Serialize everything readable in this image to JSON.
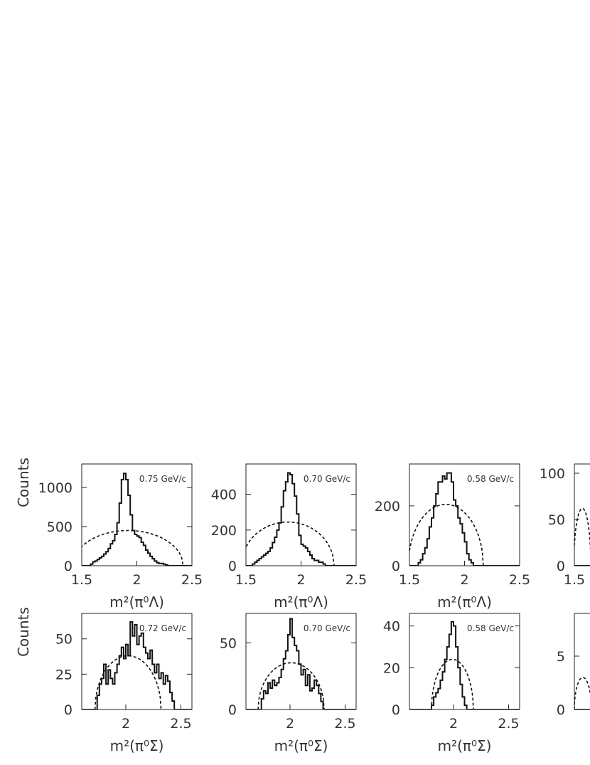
{
  "chart_data": [
    {
      "type": "histogram",
      "ylabel": "Counts",
      "xlabel": "m²(π⁰Λ)",
      "annotation": "0.75 GeV/c",
      "xlim": [
        1.5,
        2.5
      ],
      "ylim": [
        0,
        1300
      ],
      "xticks": [
        1.5,
        2,
        2.5
      ],
      "yticks": [
        0,
        500,
        1000
      ],
      "bin_edges_range": [
        1.5,
        2.5
      ],
      "bin_count": 50,
      "hist_values": [
        0,
        0,
        0,
        0,
        20,
        50,
        60,
        80,
        100,
        120,
        150,
        180,
        220,
        280,
        320,
        400,
        550,
        800,
        1100,
        1180,
        1100,
        900,
        650,
        450,
        400,
        380,
        360,
        300,
        260,
        200,
        160,
        120,
        90,
        60,
        40,
        30,
        30,
        20,
        10,
        0,
        0,
        0,
        0,
        0,
        0,
        0,
        0,
        0,
        0,
        0
      ],
      "curve_peak": 450,
      "curve_center": 1.92,
      "curve_halfwidth": 0.5
    },
    {
      "type": "histogram",
      "xlabel": "m²(π⁰Λ)",
      "annotation": "0.70 GeV/c",
      "xlim": [
        1.5,
        2.5
      ],
      "ylim": [
        0,
        570
      ],
      "xticks": [
        1.5,
        2,
        2.5
      ],
      "yticks": [
        0,
        200,
        400
      ],
      "bin_edges_range": [
        1.5,
        2.5
      ],
      "bin_count": 50,
      "hist_values": [
        0,
        0,
        0,
        10,
        20,
        30,
        40,
        50,
        60,
        70,
        80,
        100,
        130,
        160,
        200,
        240,
        330,
        420,
        470,
        520,
        510,
        460,
        390,
        290,
        170,
        120,
        110,
        100,
        80,
        60,
        40,
        30,
        30,
        20,
        20,
        10,
        0,
        0,
        0,
        0,
        0,
        0,
        0,
        0,
        0,
        0,
        0,
        0,
        0,
        0
      ],
      "curve_peak": 245,
      "curve_center": 1.88,
      "curve_halfwidth": 0.42
    },
    {
      "type": "histogram",
      "xlabel": "m²(π⁰Λ)",
      "annotation": "0.58 GeV/c",
      "xlim": [
        1.5,
        2.5
      ],
      "ylim": [
        0,
        340
      ],
      "xticks": [
        1.5,
        2,
        2.5
      ],
      "yticks": [
        0,
        200
      ],
      "bin_edges_range": [
        1.5,
        2.5
      ],
      "bin_count": 50,
      "hist_values": [
        0,
        0,
        0,
        0,
        10,
        20,
        40,
        60,
        90,
        130,
        160,
        200,
        240,
        280,
        280,
        300,
        290,
        310,
        310,
        280,
        220,
        200,
        160,
        140,
        110,
        80,
        40,
        20,
        10,
        0,
        0,
        0,
        0,
        0,
        0,
        0,
        0,
        0,
        0,
        0,
        0,
        0,
        0,
        0,
        0,
        0,
        0,
        0,
        0,
        0
      ],
      "curve_peak": 205,
      "curve_center": 1.83,
      "curve_halfwidth": 0.34
    },
    {
      "type": "histogram",
      "ylabel": "Counts",
      "xlabel": "m²(π⁰Σ)",
      "annotation": "0.72 GeV/c",
      "xlim": [
        1.6,
        2.6
      ],
      "ylim": [
        0,
        68
      ],
      "xticks": [
        2,
        2.5
      ],
      "yticks": [
        0,
        25,
        50
      ],
      "bin_edges_range": [
        1.6,
        2.6
      ],
      "bin_count": 50,
      "hist_values": [
        0,
        0,
        0,
        0,
        0,
        0,
        0,
        10,
        18,
        22,
        32,
        18,
        28,
        22,
        18,
        26,
        32,
        38,
        44,
        36,
        46,
        38,
        62,
        52,
        60,
        46,
        52,
        54,
        44,
        40,
        36,
        42,
        32,
        26,
        32,
        22,
        26,
        18,
        24,
        20,
        12,
        6,
        0,
        0,
        0,
        0,
        0,
        0,
        0,
        0
      ],
      "curve_peak": 38,
      "curve_center": 2.02,
      "curve_halfwidth": 0.3
    },
    {
      "type": "histogram",
      "xlabel": "m²(π⁰Σ)",
      "annotation": "0.70 GeV/c",
      "xlim": [
        1.6,
        2.6
      ],
      "ylim": [
        0,
        72
      ],
      "xticks": [
        2,
        2.5
      ],
      "yticks": [
        0,
        50
      ],
      "bin_edges_range": [
        1.6,
        2.6
      ],
      "bin_count": 50,
      "hist_values": [
        0,
        0,
        0,
        0,
        0,
        0,
        0,
        8,
        14,
        12,
        20,
        16,
        22,
        18,
        20,
        24,
        30,
        38,
        44,
        56,
        68,
        54,
        48,
        44,
        34,
        26,
        30,
        18,
        26,
        14,
        16,
        22,
        18,
        12,
        6,
        0,
        0,
        0,
        0,
        0,
        0,
        0,
        0,
        0,
        0,
        0,
        0,
        0,
        0,
        0
      ],
      "curve_peak": 35,
      "curve_center": 2.01,
      "curve_halfwidth": 0.3
    },
    {
      "type": "histogram",
      "xlabel": "m²(π⁰Σ)",
      "annotation": "0.58 GeV/c",
      "xlim": [
        1.6,
        2.6
      ],
      "ylim": [
        0,
        46
      ],
      "xticks": [
        2,
        2.5
      ],
      "yticks": [
        0,
        20,
        40
      ],
      "bin_edges_range": [
        1.6,
        2.6
      ],
      "bin_count": 50,
      "hist_values": [
        0,
        0,
        0,
        0,
        0,
        0,
        0,
        0,
        0,
        0,
        2,
        6,
        8,
        10,
        14,
        18,
        24,
        30,
        36,
        42,
        40,
        30,
        20,
        12,
        6,
        2,
        0,
        0,
        0,
        0,
        0,
        0,
        0,
        0,
        0,
        0,
        0,
        0,
        0,
        0,
        0,
        0,
        0,
        0,
        0,
        0,
        0,
        0,
        0,
        0
      ],
      "curve_peak": 24,
      "curve_center": 1.99,
      "curve_halfwidth": 0.19
    },
    {
      "type": "histogram",
      "ylabel": "",
      "annotation": "",
      "xlim": [
        1.5,
        2.5
      ],
      "ylim": [
        0,
        110
      ],
      "xticks": [
        1.5
      ],
      "yticks": [
        0,
        50,
        100
      ],
      "bin_edges_range": [
        1.5,
        2.5
      ],
      "bin_count": 50,
      "hist_values": [
        0,
        0,
        0,
        0,
        0,
        0,
        0,
        0,
        0,
        0,
        0,
        0,
        0,
        0,
        0,
        0,
        0,
        0,
        0,
        0,
        0,
        0,
        0,
        0,
        0,
        0,
        0,
        0,
        0,
        0,
        0,
        0,
        0,
        0,
        0,
        0,
        0,
        0,
        0,
        0,
        0,
        0,
        0,
        0,
        0,
        0,
        0,
        0,
        0,
        0
      ],
      "curve_peak": 62,
      "curve_center": 1.78,
      "curve_halfwidth": 0.3
    },
    {
      "type": "histogram",
      "ylabel": "",
      "annotation": "",
      "xlim": [
        1.6,
        2.6
      ],
      "ylim": [
        0,
        9
      ],
      "xticks": [],
      "yticks": [
        0,
        5
      ],
      "bin_edges_range": [
        1.6,
        2.6
      ],
      "bin_count": 50,
      "hist_values": [
        0,
        0,
        0,
        0,
        0,
        0,
        0,
        0,
        0,
        0,
        0,
        0,
        0,
        0,
        0,
        0,
        0,
        0,
        0,
        0,
        0,
        0,
        0,
        0,
        0,
        0,
        0,
        0,
        0,
        0,
        0,
        0,
        0,
        0,
        0,
        0,
        0,
        0,
        0,
        0,
        0,
        0,
        0,
        0,
        0,
        0,
        0,
        0,
        0,
        0
      ],
      "curve_peak": 3,
      "curve_center": 1.9,
      "curve_halfwidth": 0.3
    }
  ]
}
